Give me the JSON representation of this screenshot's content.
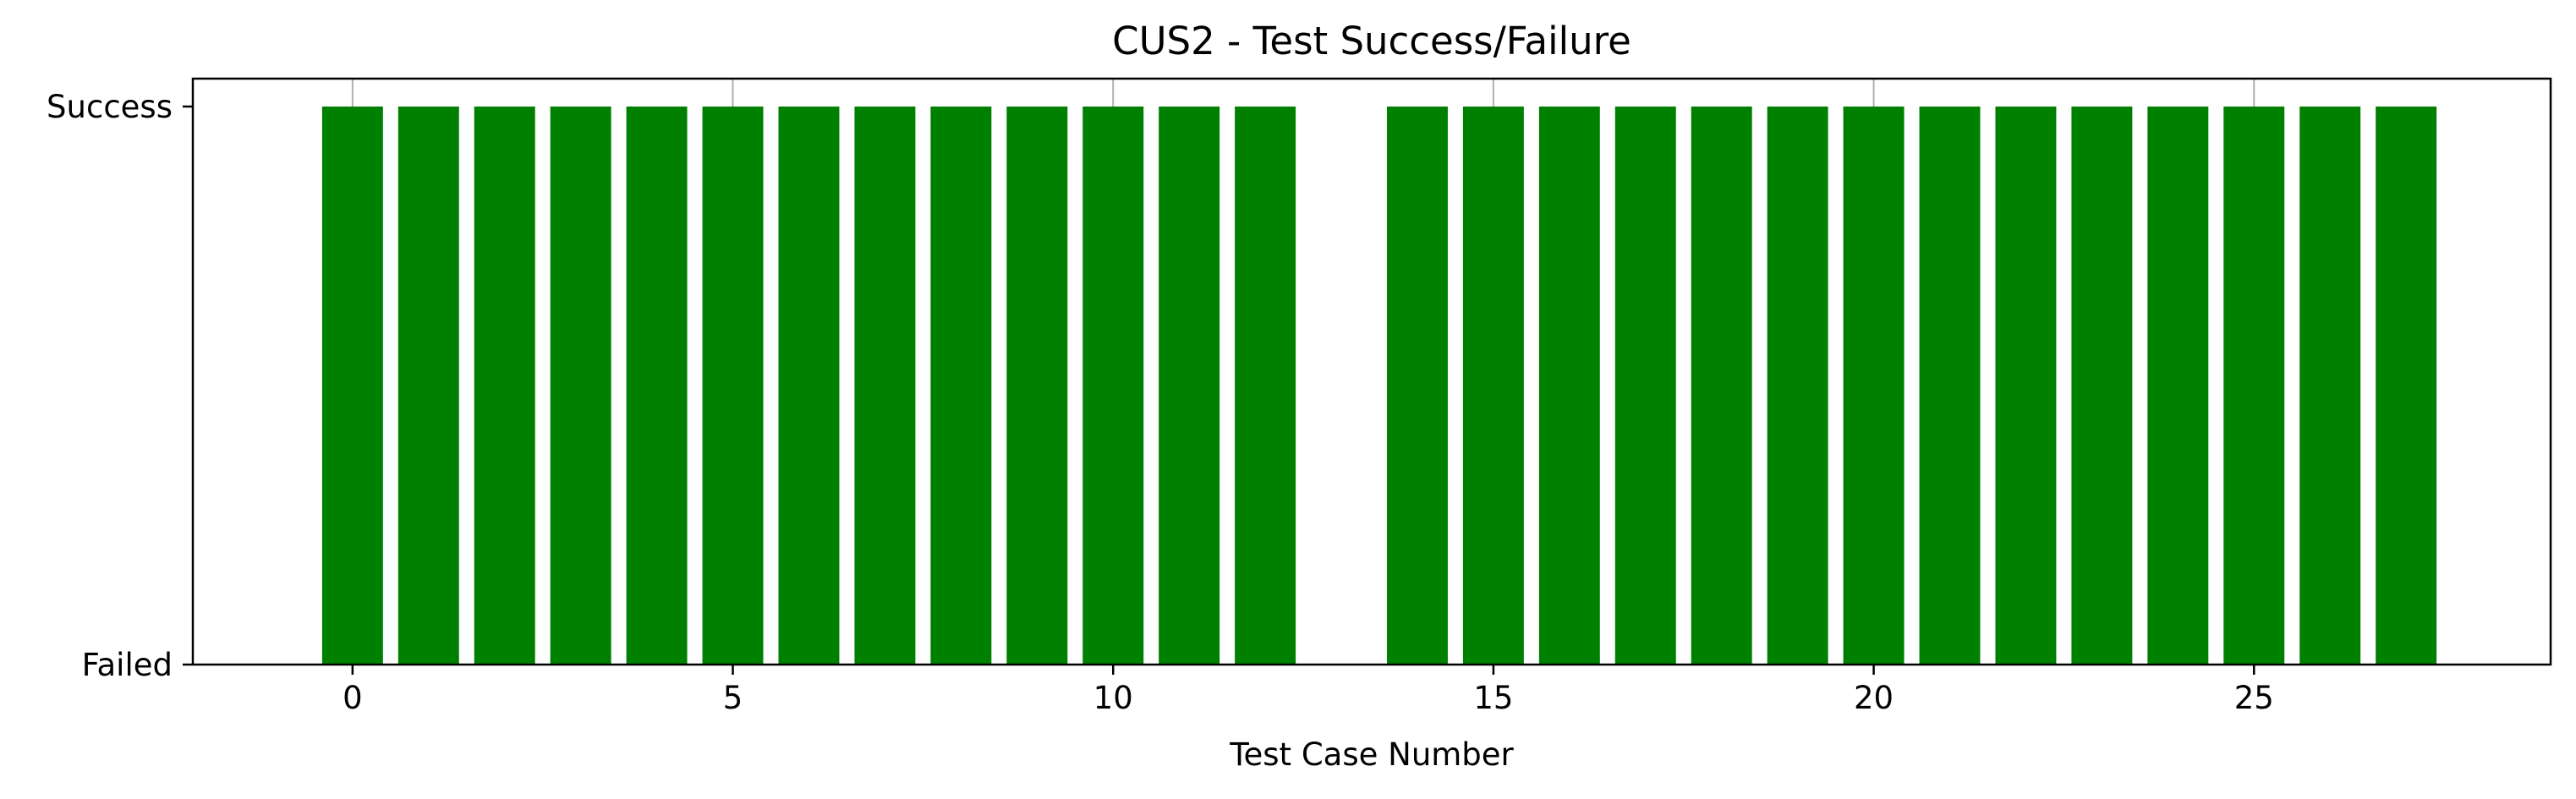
{
  "chart_data": {
    "type": "bar",
    "title": "CUS2 - Test Success/Failure",
    "xlabel": "Test Case Number",
    "ylabel": "",
    "x": [
      0,
      1,
      2,
      3,
      4,
      5,
      6,
      7,
      8,
      9,
      10,
      11,
      12,
      13,
      14,
      15,
      16,
      17,
      18,
      19,
      20,
      21,
      22,
      23,
      24,
      25,
      26,
      27
    ],
    "values": [
      1,
      1,
      1,
      1,
      1,
      1,
      1,
      1,
      1,
      1,
      1,
      1,
      1,
      0,
      1,
      1,
      1,
      1,
      1,
      1,
      1,
      1,
      1,
      1,
      1,
      1,
      1,
      1
    ],
    "bar_color": "#008000",
    "xlim": [
      -2.1,
      28.9
    ],
    "ylim": [
      0,
      1.05
    ],
    "xticks": [
      0,
      5,
      10,
      15,
      20,
      25
    ],
    "xtick_labels": [
      "0",
      "5",
      "10",
      "15",
      "20",
      "25"
    ],
    "yticks": [
      0,
      1
    ],
    "ytick_labels": [
      "Failed",
      "Success"
    ],
    "grid": "x-only",
    "grid_color": "#b0b0b0",
    "legend": "none"
  }
}
